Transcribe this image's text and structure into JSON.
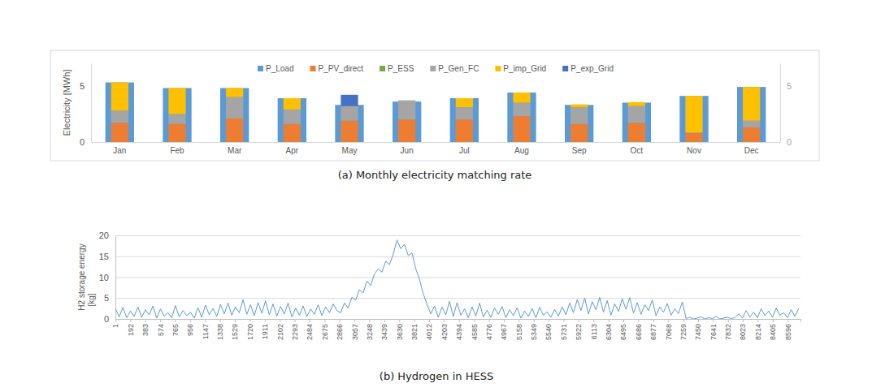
{
  "chart_data": [
    {
      "type": "bar",
      "title": "(a) Monthly electricity matching rate",
      "ylabel": "Electricity [MWh]",
      "categories": [
        "Jan",
        "Feb",
        "Mar",
        "Apr",
        "May",
        "Jun",
        "Jul",
        "Aug",
        "Sep",
        "Oct",
        "Nov",
        "Dec"
      ],
      "series": [
        {
          "name": "P_Load",
          "color": "#5B9BD5",
          "values": [
            5.3,
            4.8,
            4.8,
            3.9,
            3.3,
            3.6,
            3.9,
            4.4,
            3.3,
            3.5,
            4.1,
            4.9
          ]
        },
        {
          "name": "P_PV_direct",
          "color": "#ED7D31",
          "axis": "y2",
          "values": [
            1.7,
            1.6,
            2.1,
            1.6,
            1.9,
            2.0,
            2.0,
            2.3,
            1.6,
            1.7,
            0.8,
            1.3
          ]
        },
        {
          "name": "P_ESS",
          "color": "#70AD47",
          "axis": "y2",
          "values": [
            0,
            0,
            0,
            0,
            0,
            0,
            0,
            0,
            0,
            0,
            0,
            0
          ]
        },
        {
          "name": "P_Gen_FC",
          "color": "#A5A5A5",
          "axis": "y2",
          "values": [
            1.1,
            0.9,
            1.9,
            1.3,
            1.3,
            1.6,
            1.1,
            1.2,
            1.5,
            1.5,
            0.05,
            0.6
          ]
        },
        {
          "name": "P_imp_Grid",
          "color": "#FFC000",
          "axis": "y2",
          "values": [
            2.5,
            2.3,
            0.8,
            1.0,
            0,
            0.05,
            0.8,
            0.9,
            0.25,
            0.35,
            3.25,
            3.0
          ]
        },
        {
          "name": "P_exp_Grid",
          "color": "#4472C4",
          "axis": "y2",
          "values": [
            0,
            0,
            0,
            0,
            1.0,
            0.05,
            0,
            0,
            0,
            0,
            0,
            0
          ]
        }
      ],
      "ylim": [
        0,
        7
      ],
      "yticks": [
        0,
        5
      ],
      "y2lim": [
        0,
        7
      ],
      "y2ticks": [
        0,
        5
      ],
      "stacked": true,
      "legend": "top",
      "grid": false
    },
    {
      "type": "line",
      "title": "(b) Hydrogen in HESS",
      "ylabel": [
        "H2 storage energy",
        "[kg]"
      ],
      "x": [
        1,
        49,
        97,
        145,
        193,
        241,
        289,
        337,
        385,
        433,
        481,
        529,
        577,
        625,
        673,
        721,
        769,
        817,
        865,
        913,
        961,
        1009,
        1057,
        1105,
        1153,
        1201,
        1249,
        1297,
        1345,
        1393,
        1441,
        1489,
        1537,
        1585,
        1633,
        1681,
        1729,
        1777,
        1825,
        1873,
        1921,
        1969,
        2017,
        2065,
        2113,
        2161,
        2209,
        2257,
        2305,
        2353,
        2401,
        2449,
        2497,
        2545,
        2593,
        2641,
        2689,
        2737,
        2785,
        2833,
        2881,
        2929,
        2977,
        3025,
        3073,
        3121,
        3169,
        3217,
        3265,
        3313,
        3361,
        3409,
        3457,
        3505,
        3553,
        3601,
        3649,
        3697,
        3745,
        3793,
        3841,
        3889,
        3937,
        3985,
        4033,
        4081,
        4129,
        4177,
        4225,
        4273,
        4321,
        4369,
        4417,
        4465,
        4513,
        4561,
        4609,
        4657,
        4705,
        4753,
        4801,
        4849,
        4897,
        4945,
        4993,
        5041,
        5089,
        5137,
        5185,
        5233,
        5281,
        5329,
        5377,
        5425,
        5473,
        5521,
        5569,
        5617,
        5665,
        5713,
        5761,
        5809,
        5857,
        5905,
        5953,
        6001,
        6049,
        6097,
        6145,
        6193,
        6241,
        6289,
        6337,
        6385,
        6433,
        6481,
        6529,
        6577,
        6625,
        6673,
        6721,
        6769,
        6817,
        6865,
        6913,
        6961,
        7009,
        7057,
        7105,
        7153,
        7201,
        7249,
        7297,
        7345,
        7393,
        7441,
        7489,
        7537,
        7585,
        7633,
        7681,
        7729,
        7777,
        7825,
        7873,
        7921,
        7969,
        8017,
        8065,
        8113,
        8161,
        8209,
        8257,
        8305,
        8353,
        8401,
        8449,
        8497,
        8545,
        8593,
        8641,
        8689,
        8737
      ],
      "series": [
        {
          "color": "#5B9BD5",
          "values": [
            2.5,
            0.5,
            2.8,
            0.3,
            1.9,
            0.6,
            2.9,
            0.4,
            2.2,
            1.0,
            3.1,
            0.2,
            2.4,
            0.7,
            1.5,
            0.3,
            3.2,
            0.5,
            2.0,
            0.8,
            1.6,
            0.2,
            2.7,
            0.4,
            3.3,
            1.0,
            2.5,
            0.6,
            3.5,
            1.2,
            3.8,
            0.9,
            2.9,
            1.5,
            4.6,
            1.1,
            3.4,
            0.8,
            3.9,
            1.4,
            4.3,
            1.0,
            3.6,
            0.7,
            3.0,
            1.2,
            3.8,
            0.5,
            2.6,
            0.9,
            3.1,
            0.6,
            2.4,
            1.1,
            3.4,
            0.8,
            2.9,
            1.5,
            3.6,
            2.0,
            1.5,
            3.8,
            2.6,
            5.2,
            4.5,
            7.0,
            6.2,
            9.1,
            8.0,
            10.8,
            12.0,
            11.2,
            13.8,
            13.0,
            15.5,
            18.9,
            16.8,
            17.9,
            15.2,
            15.8,
            12.0,
            9.5,
            6.0,
            3.5,
            1.2,
            3.1,
            0.4,
            2.8,
            1.0,
            4.2,
            0.6,
            3.9,
            0.9,
            2.4,
            0.3,
            2.9,
            0.7,
            3.8,
            0.5,
            2.1,
            0.4,
            2.6,
            1.1,
            3.0,
            0.3,
            2.2,
            0.8,
            2.7,
            0.2,
            1.9,
            0.6,
            2.5,
            0.3,
            2.8,
            0.9,
            1.7,
            0.4,
            2.3,
            0.7,
            2.9,
            1.0,
            3.8,
            1.5,
            4.6,
            2.0,
            5.0,
            1.2,
            4.1,
            2.2,
            5.2,
            1.6,
            4.4,
            0.9,
            3.6,
            1.8,
            4.8,
            2.3,
            5.1,
            1.4,
            3.9,
            1.1,
            3.4,
            2.0,
            4.5,
            0.8,
            2.9,
            1.6,
            3.7,
            0.9,
            2.4,
            1.3,
            4.1,
            0.1,
            0.4,
            0,
            0.2,
            0.5,
            0,
            0.3,
            0.1,
            0.6,
            0,
            0.2,
            0.4,
            0.1,
            0.3,
            1.2,
            0.2,
            2.0,
            0.5,
            1.6,
            0.3,
            2.4,
            0.8,
            1.9,
            0.4,
            2.6,
            0.9,
            1.5,
            0.3,
            2.2,
            0.6,
            2.5
          ]
        }
      ],
      "xlim": [
        1,
        8760
      ],
      "xticks": [
        1,
        192,
        383,
        574,
        765,
        956,
        1147,
        1338,
        1529,
        1720,
        1911,
        2102,
        2293,
        2484,
        2675,
        2866,
        3057,
        3248,
        3439,
        3630,
        3821,
        4012,
        4203,
        4394,
        4585,
        4776,
        4967,
        5158,
        5349,
        5540,
        5731,
        5922,
        6113,
        6304,
        6495,
        6686,
        6877,
        7068,
        7259,
        7450,
        7641,
        7832,
        8023,
        8214,
        8405,
        8596
      ],
      "ylim": [
        0,
        20
      ],
      "yticks": [
        0,
        5,
        10,
        15,
        20
      ],
      "grid": true
    }
  ]
}
